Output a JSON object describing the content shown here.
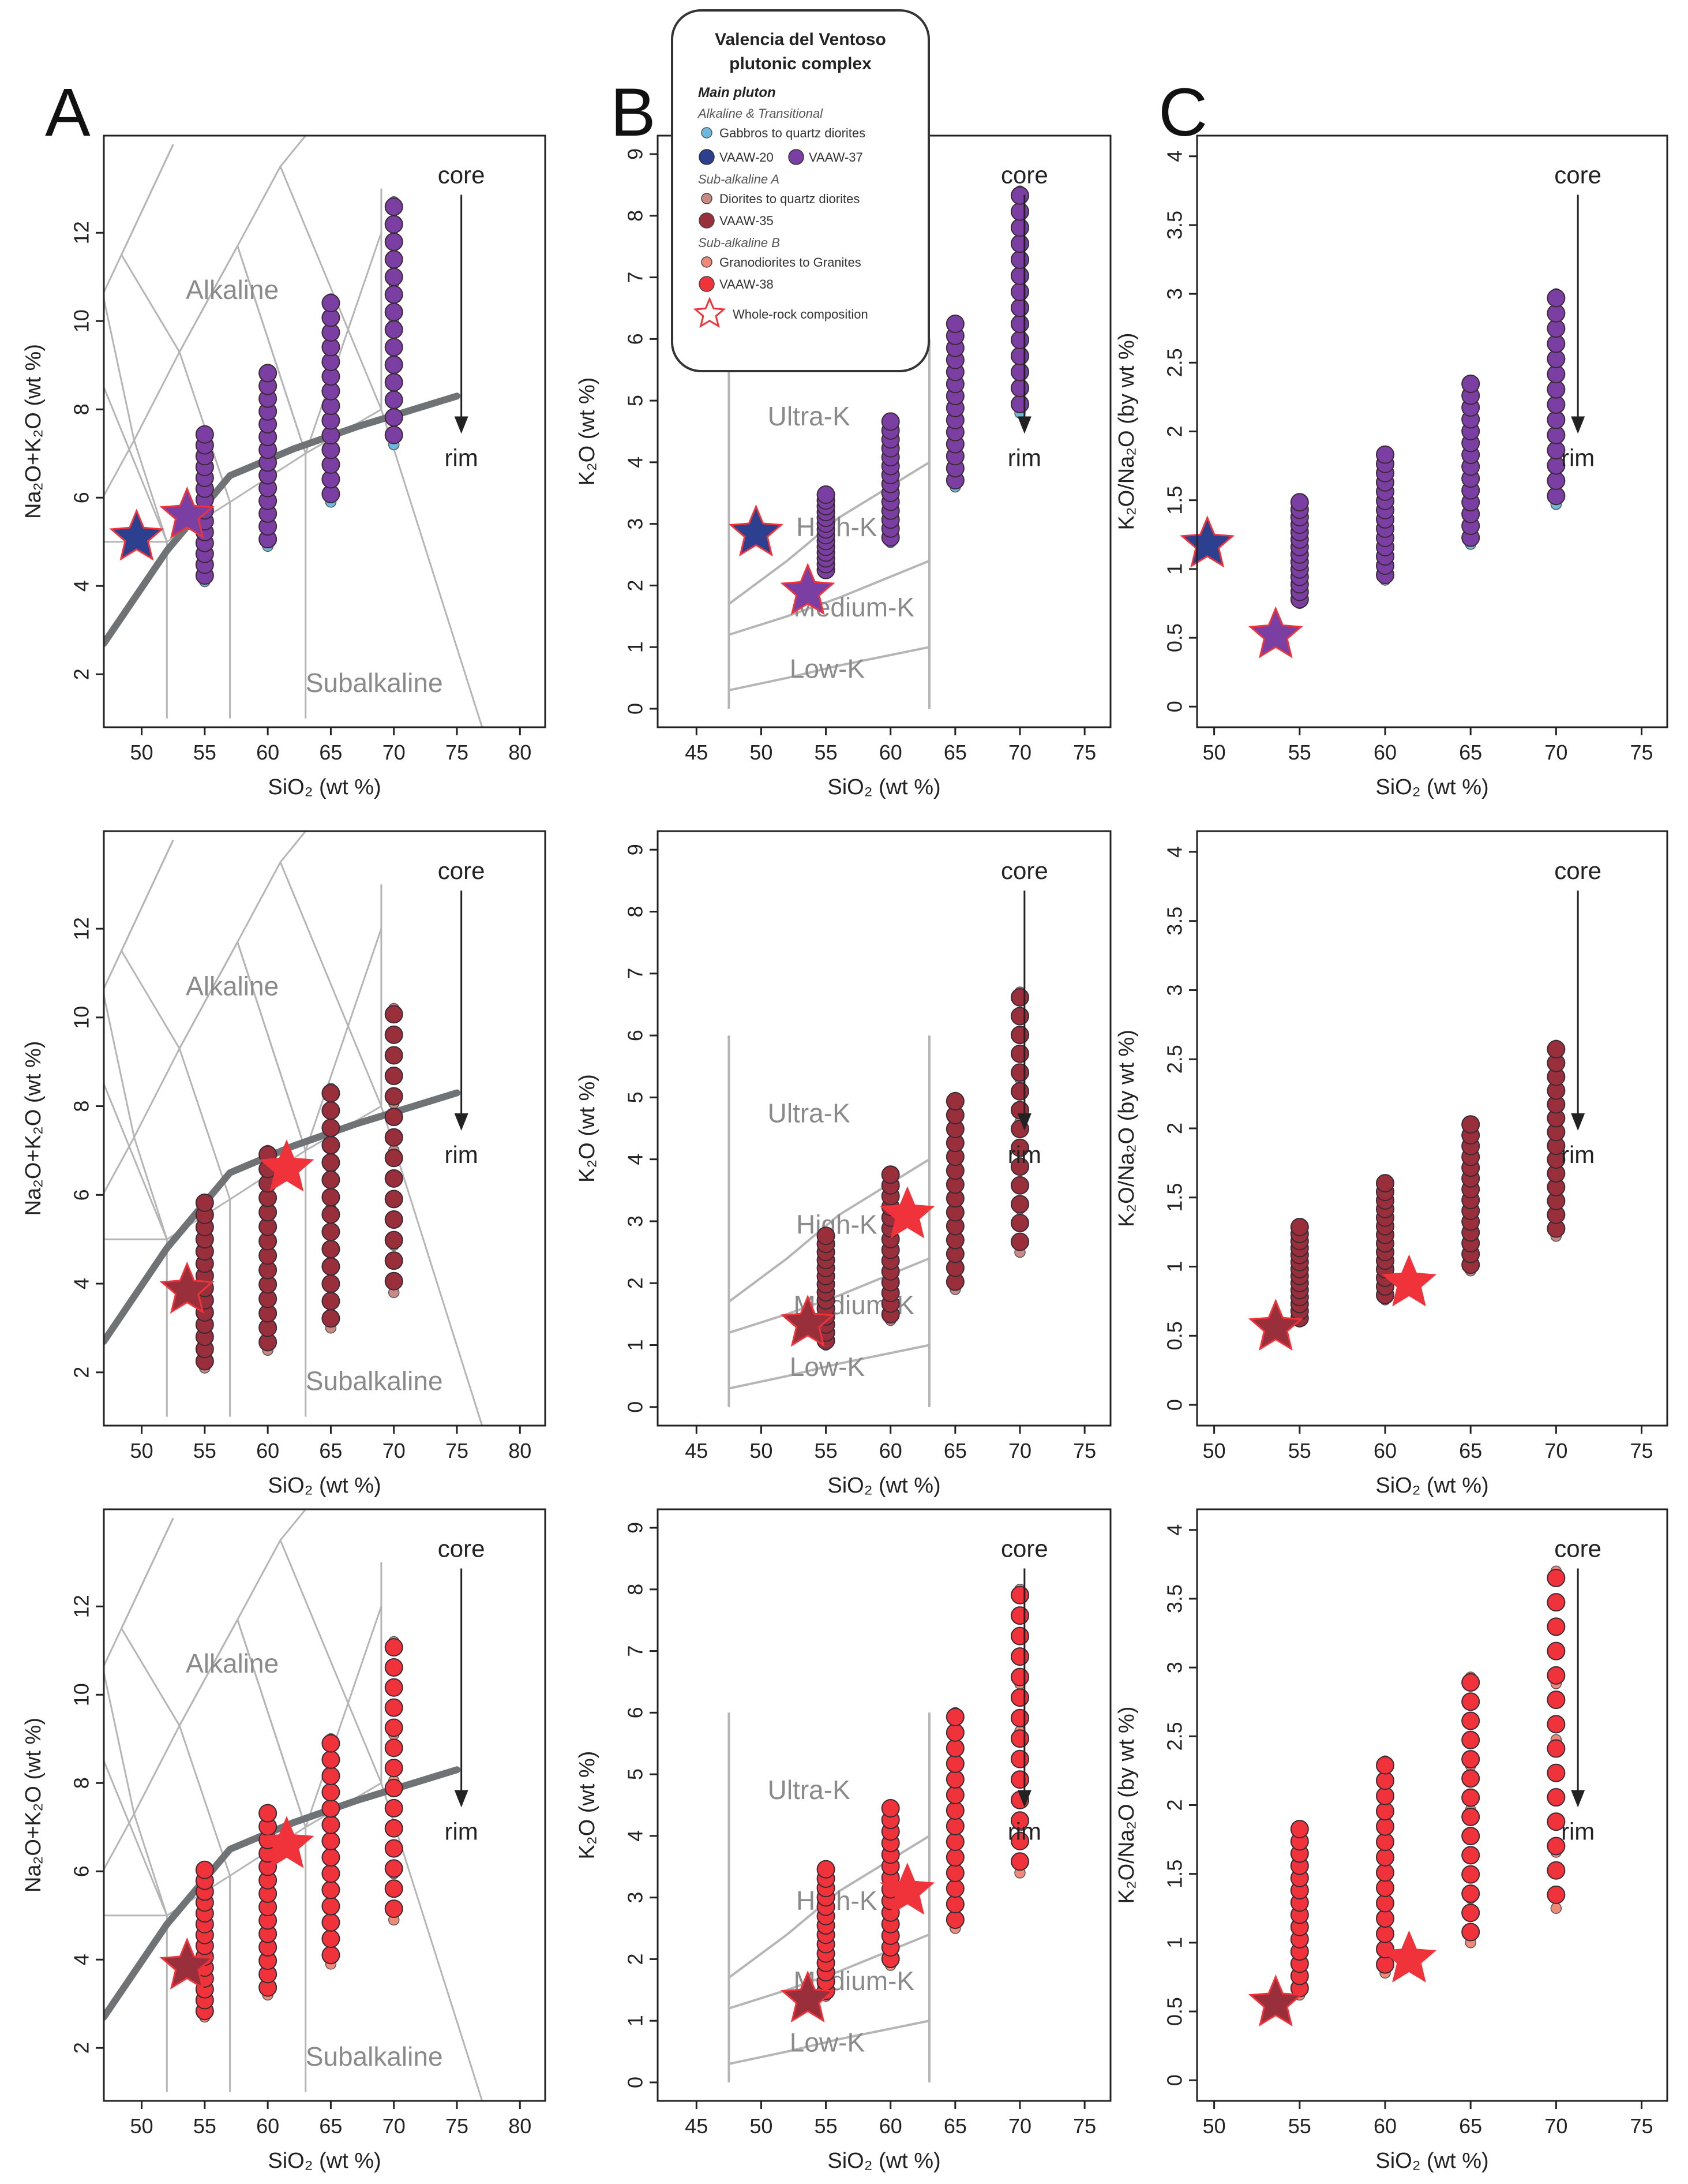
{
  "figure": {
    "panel_letters": [
      "A",
      "B",
      "C"
    ]
  },
  "legend": {
    "title_line1": "Valencia del Ventoso",
    "title_line2": "plutonic complex",
    "heading": "Main pluton",
    "groups": [
      {
        "subheading": "Alkaline & Transitional",
        "items": [
          {
            "label": "Gabbros to quartz diorites",
            "color": "#6cb8de",
            "kind": "small"
          },
          {
            "label": "VAAW-20",
            "color": "#2d3f8f",
            "kind": "large"
          },
          {
            "label": "VAAW-37",
            "color": "#7b3fa3",
            "kind": "large"
          }
        ]
      },
      {
        "subheading": "Sub-alkaline A",
        "items": [
          {
            "label": "Diorites to quartz diorites",
            "color": "#c98a86",
            "kind": "small"
          },
          {
            "label": "VAAW-35",
            "color": "#9a2f3c",
            "kind": "large"
          }
        ]
      },
      {
        "subheading": "Sub-alkaline B",
        "items": [
          {
            "label": "Granodiorites to Granites",
            "color": "#f08a78",
            "kind": "small"
          },
          {
            "label": "VAAW-38",
            "color": "#f0333a",
            "kind": "large"
          }
        ]
      }
    ],
    "star_label": "Whole-rock composition"
  },
  "chart_data": [
    {
      "id": "A1",
      "type": "scatter",
      "row": 1,
      "col": "A",
      "xlabel": "SiO₂ (wt %)",
      "ylabel": "Na₂O+K₂O (wt %)",
      "xlim": [
        47,
        82
      ],
      "ylim": [
        0.8,
        14.2
      ],
      "xticks": [
        50,
        55,
        60,
        65,
        70,
        75,
        80
      ],
      "yticks": [
        2,
        4,
        6,
        8,
        10,
        12
      ],
      "regions": [
        "Alkaline",
        "Subalkaline"
      ],
      "annotations": {
        "core": "core",
        "rim": "rim"
      },
      "series": [
        {
          "x": 55,
          "ymin": 4.1,
          "ymax": 7.5,
          "small_color": "#6cb8de",
          "large_color": "#7b3fa3"
        },
        {
          "x": 60,
          "ymin": 4.9,
          "ymax": 8.9,
          "small_color": "#6cb8de",
          "large_color": "#7b3fa3"
        },
        {
          "x": 65,
          "ymin": 5.9,
          "ymax": 10.5,
          "small_color": "#6cb8de",
          "large_color": "#7b3fa3"
        },
        {
          "x": 70,
          "ymin": 7.2,
          "ymax": 12.7,
          "small_color": "#6cb8de",
          "large_color": "#7b3fa3"
        }
      ],
      "stars": [
        {
          "x": 49.6,
          "y": 5.1,
          "color": "#2d3f8f"
        },
        {
          "x": 53.6,
          "y": 5.6,
          "color": "#7b3fa3"
        }
      ]
    },
    {
      "id": "B1",
      "type": "scatter",
      "row": 1,
      "col": "B",
      "xlabel": "SiO₂ (wt %)",
      "ylabel": "K₂O (wt %)",
      "xlim": [
        42,
        77
      ],
      "ylim": [
        -0.3,
        9.3
      ],
      "xticks": [
        45,
        50,
        55,
        60,
        65,
        70,
        75
      ],
      "yticks": [
        0,
        1,
        2,
        3,
        4,
        5,
        6,
        7,
        8,
        9
      ],
      "regions": [
        "Ultra-K",
        "High-K",
        "Medium-K",
        "Low-K"
      ],
      "annotations": {
        "core": "core",
        "rim": "rim"
      },
      "series": [
        {
          "x": 55,
          "ymin": 2.2,
          "ymax": 3.5,
          "small_color": "#6cb8de",
          "large_color": "#7b3fa3"
        },
        {
          "x": 60,
          "ymin": 2.7,
          "ymax": 4.7,
          "small_color": "#6cb8de",
          "large_color": "#7b3fa3"
        },
        {
          "x": 65,
          "ymin": 3.6,
          "ymax": 6.3,
          "small_color": "#6cb8de",
          "large_color": "#7b3fa3"
        },
        {
          "x": 70,
          "ymin": 4.8,
          "ymax": 8.4,
          "small_color": "#6cb8de",
          "large_color": "#7b3fa3"
        }
      ],
      "stars": [
        {
          "x": 49.6,
          "y": 2.85,
          "color": "#2d3f8f"
        },
        {
          "x": 53.6,
          "y": 1.9,
          "color": "#7b3fa3"
        }
      ]
    },
    {
      "id": "C1",
      "type": "scatter",
      "row": 1,
      "col": "C",
      "xlabel": "SiO₂ (wt %)",
      "ylabel": "K₂O/Na₂O (by wt %)",
      "xlim": [
        49,
        76.5
      ],
      "ylim": [
        -0.15,
        4.15
      ],
      "xticks": [
        50,
        55,
        60,
        65,
        70,
        75
      ],
      "yticks": [
        0,
        0.5,
        1,
        1.5,
        2,
        2.5,
        3,
        3.5,
        4
      ],
      "regions": [],
      "annotations": {
        "core": "core",
        "rim": "rim"
      },
      "series": [
        {
          "x": 55,
          "ymin": 0.75,
          "ymax": 1.5,
          "small_color": "#6cb8de",
          "large_color": "#7b3fa3"
        },
        {
          "x": 60,
          "ymin": 0.92,
          "ymax": 1.85,
          "small_color": "#6cb8de",
          "large_color": "#7b3fa3"
        },
        {
          "x": 65,
          "ymin": 1.18,
          "ymax": 2.37,
          "small_color": "#6cb8de",
          "large_color": "#7b3fa3"
        },
        {
          "x": 70,
          "ymin": 1.47,
          "ymax": 3.0,
          "small_color": "#6cb8de",
          "large_color": "#7b3fa3"
        }
      ],
      "stars": [
        {
          "x": 49.6,
          "y": 1.18,
          "color": "#2d3f8f"
        },
        {
          "x": 53.6,
          "y": 0.52,
          "color": "#7b3fa3"
        }
      ]
    },
    {
      "id": "A2",
      "type": "scatter",
      "row": 2,
      "col": "A",
      "xlabel": "SiO₂ (wt %)",
      "ylabel": "Na₂O+K₂O (wt %)",
      "xlim": [
        47,
        82
      ],
      "ylim": [
        0.8,
        14.2
      ],
      "xticks": [
        50,
        55,
        60,
        65,
        70,
        75,
        80
      ],
      "yticks": [
        2,
        4,
        6,
        8,
        10,
        12
      ],
      "regions": [
        "Alkaline",
        "Subalkaline"
      ],
      "annotations": {
        "core": "core",
        "rim": "rim"
      },
      "series": [
        {
          "x": 55,
          "ymin": 2.1,
          "ymax": 5.9,
          "small_color": "#c98a86",
          "large_color": "#9a2f3c"
        },
        {
          "x": 60,
          "ymin": 2.5,
          "ymax": 7.0,
          "small_color": "#c98a86",
          "large_color": "#9a2f3c"
        },
        {
          "x": 65,
          "ymin": 3.0,
          "ymax": 8.4,
          "small_color": "#c98a86",
          "large_color": "#9a2f3c"
        },
        {
          "x": 70,
          "ymin": 3.8,
          "ymax": 10.2,
          "small_color": "#c98a86",
          "large_color": "#9a2f3c"
        }
      ],
      "stars": [
        {
          "x": 53.6,
          "y": 3.85,
          "color": "#9a2f3c"
        },
        {
          "x": 61.5,
          "y": 6.6,
          "color": "#f0333a"
        }
      ]
    },
    {
      "id": "B2",
      "type": "scatter",
      "row": 2,
      "col": "B",
      "xlabel": "SiO₂ (wt %)",
      "ylabel": "K₂O (wt %)",
      "xlim": [
        42,
        77
      ],
      "ylim": [
        -0.3,
        9.3
      ],
      "xticks": [
        45,
        50,
        55,
        60,
        65,
        70,
        75
      ],
      "yticks": [
        0,
        1,
        2,
        3,
        4,
        5,
        6,
        7,
        8,
        9
      ],
      "regions": [
        "Ultra-K",
        "High-K",
        "Medium-K",
        "Low-K"
      ],
      "annotations": {
        "core": "core",
        "rim": "rim"
      },
      "series": [
        {
          "x": 55,
          "ymin": 1.0,
          "ymax": 2.8,
          "small_color": "#c98a86",
          "large_color": "#9a2f3c"
        },
        {
          "x": 60,
          "ymin": 1.4,
          "ymax": 3.8,
          "small_color": "#c98a86",
          "large_color": "#9a2f3c"
        },
        {
          "x": 65,
          "ymin": 1.9,
          "ymax": 5.0,
          "small_color": "#c98a86",
          "large_color": "#9a2f3c"
        },
        {
          "x": 70,
          "ymin": 2.5,
          "ymax": 6.7,
          "small_color": "#c98a86",
          "large_color": "#9a2f3c"
        }
      ],
      "stars": [
        {
          "x": 53.6,
          "y": 1.35,
          "color": "#9a2f3c"
        },
        {
          "x": 61.3,
          "y": 3.1,
          "color": "#f0333a"
        }
      ]
    },
    {
      "id": "C2",
      "type": "scatter",
      "row": 2,
      "col": "C",
      "xlabel": "SiO₂ (wt %)",
      "ylabel": "K₂O/Na₂O (by wt %)",
      "xlim": [
        49,
        76.5
      ],
      "ylim": [
        -0.15,
        4.15
      ],
      "xticks": [
        50,
        55,
        60,
        65,
        70,
        75
      ],
      "yticks": [
        0,
        0.5,
        1,
        1.5,
        2,
        2.5,
        3,
        3.5,
        4
      ],
      "regions": [],
      "annotations": {
        "core": "core",
        "rim": "rim"
      },
      "series": [
        {
          "x": 55,
          "ymin": 0.6,
          "ymax": 1.3,
          "small_color": "#c98a86",
          "large_color": "#9a2f3c"
        },
        {
          "x": 60,
          "ymin": 0.76,
          "ymax": 1.62,
          "small_color": "#c98a86",
          "large_color": "#9a2f3c"
        },
        {
          "x": 65,
          "ymin": 0.97,
          "ymax": 2.05,
          "small_color": "#c98a86",
          "large_color": "#9a2f3c"
        },
        {
          "x": 70,
          "ymin": 1.22,
          "ymax": 2.6,
          "small_color": "#c98a86",
          "large_color": "#9a2f3c"
        }
      ],
      "stars": [
        {
          "x": 53.6,
          "y": 0.56,
          "color": "#9a2f3c"
        },
        {
          "x": 61.4,
          "y": 0.88,
          "color": "#f0333a"
        }
      ]
    },
    {
      "id": "A3",
      "type": "scatter",
      "row": 3,
      "col": "A",
      "xlabel": "SiO₂ (wt %)",
      "ylabel": "Na₂O+K₂O (wt %)",
      "xlim": [
        47,
        82
      ],
      "ylim": [
        0.8,
        14.2
      ],
      "xticks": [
        50,
        55,
        60,
        65,
        70,
        75,
        80
      ],
      "yticks": [
        2,
        4,
        6,
        8,
        10,
        12
      ],
      "regions": [
        "Alkaline",
        "Subalkaline"
      ],
      "annotations": {
        "core": "core",
        "rim": "rim"
      },
      "series": [
        {
          "x": 55,
          "ymin": 2.7,
          "ymax": 6.1,
          "small_color": "#f08a78",
          "large_color": "#f0333a"
        },
        {
          "x": 60,
          "ymin": 3.2,
          "ymax": 7.4,
          "small_color": "#f08a78",
          "large_color": "#f0333a"
        },
        {
          "x": 65,
          "ymin": 3.9,
          "ymax": 9.0,
          "small_color": "#f08a78",
          "large_color": "#f0333a"
        },
        {
          "x": 70,
          "ymin": 4.9,
          "ymax": 11.2,
          "small_color": "#f08a78",
          "large_color": "#f0333a"
        }
      ],
      "stars": [
        {
          "x": 53.6,
          "y": 3.85,
          "color": "#9a2f3c"
        },
        {
          "x": 61.5,
          "y": 6.6,
          "color": "#f0333a"
        }
      ]
    },
    {
      "id": "B3",
      "type": "scatter",
      "row": 3,
      "col": "B",
      "xlabel": "SiO₂ (wt %)",
      "ylabel": "K₂O (wt %)",
      "xlim": [
        42,
        77
      ],
      "ylim": [
        -0.3,
        9.3
      ],
      "xticks": [
        45,
        50,
        55,
        60,
        65,
        70,
        75
      ],
      "yticks": [
        0,
        1,
        2,
        3,
        4,
        5,
        6,
        7,
        8,
        9
      ],
      "regions": [
        "Ultra-K",
        "High-K",
        "Medium-K",
        "Low-K"
      ],
      "annotations": {
        "core": "core",
        "rim": "rim"
      },
      "series": [
        {
          "x": 55,
          "ymin": 1.4,
          "ymax": 3.5,
          "small_color": "#f08a78",
          "large_color": "#f0333a"
        },
        {
          "x": 60,
          "ymin": 1.9,
          "ymax": 4.5,
          "small_color": "#f08a78",
          "large_color": "#f0333a"
        },
        {
          "x": 65,
          "ymin": 2.5,
          "ymax": 6.0,
          "small_color": "#f08a78",
          "large_color": "#f0333a"
        },
        {
          "x": 70,
          "ymin": 3.4,
          "ymax": 8.0,
          "small_color": "#f08a78",
          "large_color": "#f0333a"
        }
      ],
      "stars": [
        {
          "x": 53.6,
          "y": 1.35,
          "color": "#9a2f3c"
        },
        {
          "x": 61.3,
          "y": 3.1,
          "color": "#f0333a"
        }
      ]
    },
    {
      "id": "C3",
      "type": "scatter",
      "row": 3,
      "col": "C",
      "xlabel": "SiO₂ (wt %)",
      "ylabel": "K₂O/Na₂O (by wt %)",
      "xlim": [
        49,
        76.5
      ],
      "ylim": [
        -0.15,
        4.15
      ],
      "xticks": [
        50,
        55,
        60,
        65,
        70,
        75
      ],
      "yticks": [
        0,
        0.5,
        1,
        1.5,
        2,
        2.5,
        3,
        3.5,
        4
      ],
      "regions": [],
      "annotations": {
        "core": "core",
        "rim": "rim"
      },
      "series": [
        {
          "x": 55,
          "ymin": 0.62,
          "ymax": 1.85,
          "small_color": "#f08a78",
          "large_color": "#f0333a"
        },
        {
          "x": 60,
          "ymin": 0.78,
          "ymax": 2.32,
          "small_color": "#f08a78",
          "large_color": "#f0333a"
        },
        {
          "x": 65,
          "ymin": 1.0,
          "ymax": 2.93,
          "small_color": "#f08a78",
          "large_color": "#f0333a"
        },
        {
          "x": 70,
          "ymin": 1.25,
          "ymax": 3.7,
          "small_color": "#f08a78",
          "large_color": "#f0333a"
        }
      ],
      "stars": [
        {
          "x": 53.6,
          "y": 0.56,
          "color": "#9a2f3c"
        },
        {
          "x": 61.4,
          "y": 0.88,
          "color": "#f0333a"
        }
      ]
    }
  ]
}
